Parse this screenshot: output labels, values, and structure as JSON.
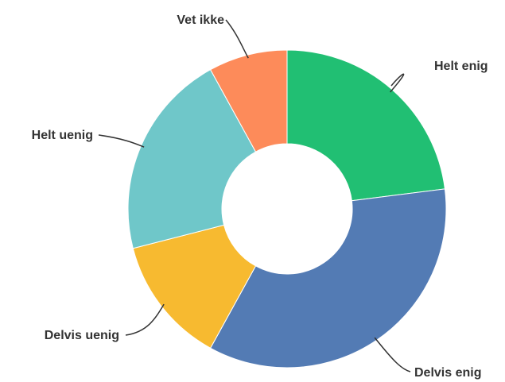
{
  "chart_data": {
    "type": "pie",
    "variant": "donut",
    "title": "",
    "legend": "none",
    "categories": [
      "Helt enig",
      "Delvis enig",
      "Delvis uenig",
      "Helt uenig",
      "Vet ikke"
    ],
    "values": [
      23,
      35,
      13,
      21,
      8
    ],
    "colors": [
      "#21bf73",
      "#537bb4",
      "#f7ba30",
      "#6fc7c9",
      "#fd8b5a"
    ]
  }
}
